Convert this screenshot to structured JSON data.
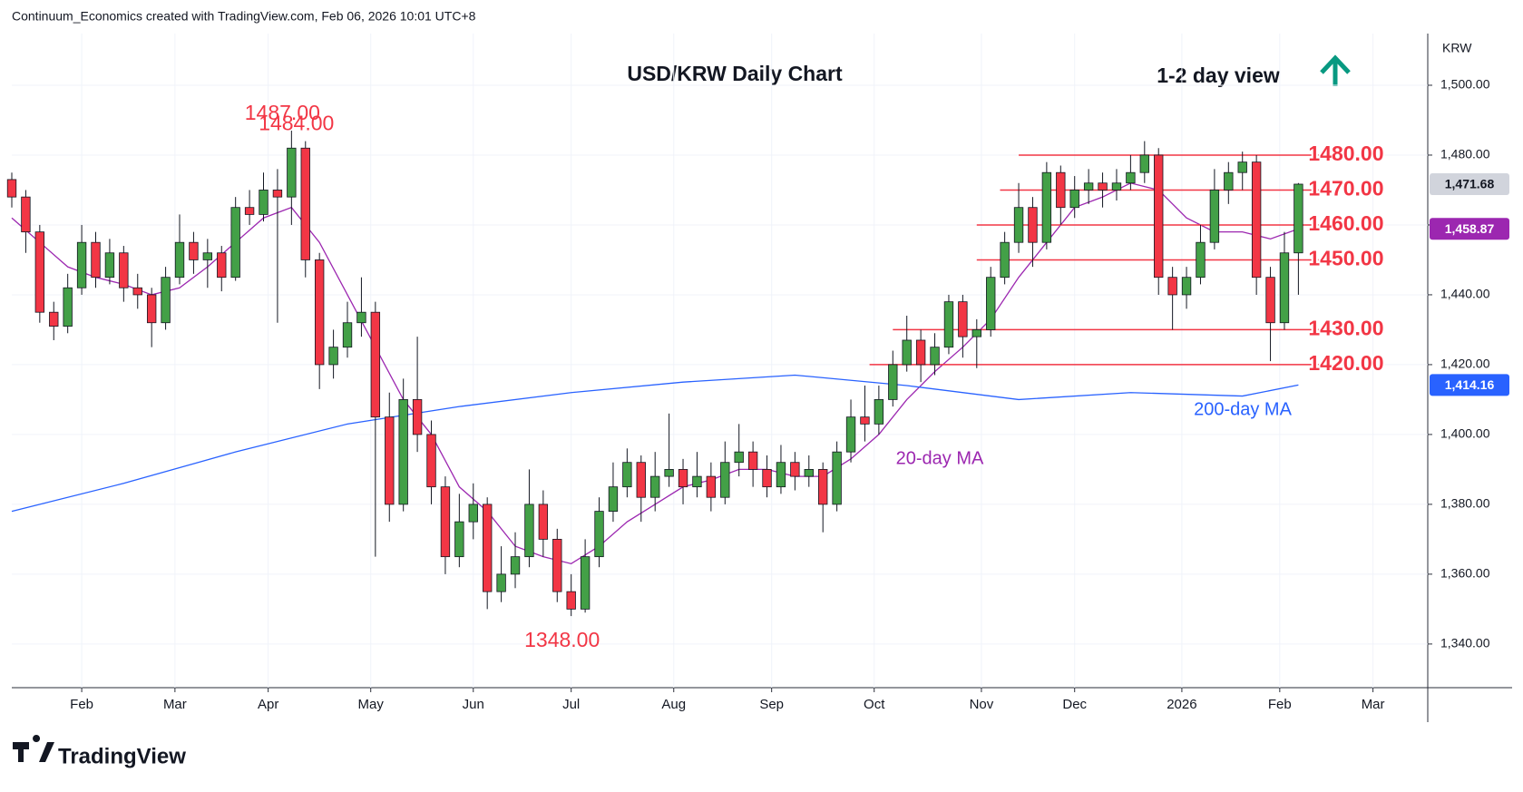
{
  "header": "Continuum_Economics created with TradingView.com, Feb 06, 2026 10:01 UTC+8",
  "footer": "TradingView",
  "chart_data": {
    "type": "candlestick",
    "title": "USD/KRW Daily Chart",
    "subtitle": "1-2 day view",
    "currency": "KRW",
    "up_color": "#43a047",
    "down_color": "#f23645",
    "x": [
      0,
      3,
      6,
      9,
      12,
      15,
      18,
      21,
      24,
      27,
      30,
      33,
      36,
      39,
      42,
      45,
      48,
      51,
      54,
      57,
      60,
      63,
      66,
      69,
      72,
      75,
      78,
      81,
      84,
      87,
      90,
      93,
      96,
      99,
      102,
      105,
      108,
      111,
      114,
      117,
      120,
      123,
      126,
      129,
      132,
      135,
      138,
      141,
      144,
      147,
      150,
      153,
      156,
      159,
      162,
      165,
      168,
      171,
      174,
      177,
      180,
      183,
      186,
      189,
      192,
      195,
      198,
      201,
      204,
      207,
      210,
      213,
      216,
      219,
      222,
      225,
      228,
      231,
      234,
      237,
      240,
      243,
      246,
      249,
      252,
      255,
      258,
      261,
      264,
      267,
      270,
      273,
      276
    ],
    "ohlc": [
      [
        1473,
        1475,
        1465,
        1468
      ],
      [
        1468,
        1470,
        1452,
        1458
      ],
      [
        1458,
        1460,
        1432,
        1435
      ],
      [
        1435,
        1438,
        1427,
        1431
      ],
      [
        1431,
        1446,
        1429,
        1442
      ],
      [
        1442,
        1460,
        1440,
        1455
      ],
      [
        1455,
        1458,
        1442,
        1445
      ],
      [
        1445,
        1456,
        1443,
        1452
      ],
      [
        1452,
        1454,
        1438,
        1442
      ],
      [
        1442,
        1446,
        1436,
        1440
      ],
      [
        1440,
        1442,
        1425,
        1432
      ],
      [
        1432,
        1448,
        1430,
        1445
      ],
      [
        1445,
        1463,
        1443,
        1455
      ],
      [
        1455,
        1458,
        1446,
        1450
      ],
      [
        1450,
        1456,
        1442,
        1452
      ],
      [
        1452,
        1454,
        1441,
        1445
      ],
      [
        1445,
        1468,
        1444,
        1465
      ],
      [
        1465,
        1470,
        1460,
        1463
      ],
      [
        1463,
        1475,
        1461,
        1470
      ],
      [
        1470,
        1476,
        1432,
        1468
      ],
      [
        1468,
        1487,
        1460,
        1482
      ],
      [
        1482,
        1484,
        1445,
        1450
      ],
      [
        1450,
        1452,
        1413,
        1420
      ],
      [
        1420,
        1430,
        1416,
        1425
      ],
      [
        1425,
        1438,
        1422,
        1432
      ],
      [
        1432,
        1445,
        1428,
        1435
      ],
      [
        1435,
        1438,
        1365,
        1405
      ],
      [
        1405,
        1412,
        1375,
        1380
      ],
      [
        1380,
        1416,
        1378,
        1410
      ],
      [
        1410,
        1428,
        1395,
        1400
      ],
      [
        1400,
        1404,
        1380,
        1385
      ],
      [
        1385,
        1388,
        1360,
        1365
      ],
      [
        1365,
        1383,
        1362,
        1375
      ],
      [
        1375,
        1386,
        1370,
        1380
      ],
      [
        1380,
        1382,
        1350,
        1355
      ],
      [
        1355,
        1368,
        1352,
        1360
      ],
      [
        1360,
        1372,
        1356,
        1365
      ],
      [
        1365,
        1390,
        1362,
        1380
      ],
      [
        1380,
        1384,
        1365,
        1370
      ],
      [
        1370,
        1373,
        1352,
        1355
      ],
      [
        1355,
        1360,
        1348,
        1350
      ],
      [
        1350,
        1370,
        1349,
        1365
      ],
      [
        1365,
        1382,
        1362,
        1378
      ],
      [
        1378,
        1392,
        1375,
        1385
      ],
      [
        1385,
        1396,
        1382,
        1392
      ],
      [
        1392,
        1394,
        1375,
        1382
      ],
      [
        1382,
        1395,
        1378,
        1388
      ],
      [
        1388,
        1406,
        1385,
        1390
      ],
      [
        1390,
        1393,
        1380,
        1385
      ],
      [
        1385,
        1395,
        1382,
        1388
      ],
      [
        1388,
        1392,
        1378,
        1382
      ],
      [
        1382,
        1398,
        1380,
        1392
      ],
      [
        1392,
        1403,
        1388,
        1395
      ],
      [
        1395,
        1398,
        1385,
        1390
      ],
      [
        1390,
        1394,
        1382,
        1385
      ],
      [
        1385,
        1397,
        1383,
        1392
      ],
      [
        1392,
        1395,
        1384,
        1388
      ],
      [
        1388,
        1394,
        1385,
        1390
      ],
      [
        1390,
        1392,
        1372,
        1380
      ],
      [
        1380,
        1398,
        1378,
        1395
      ],
      [
        1395,
        1410,
        1392,
        1405
      ],
      [
        1405,
        1414,
        1398,
        1403
      ],
      [
        1403,
        1414,
        1400,
        1410
      ],
      [
        1410,
        1424,
        1408,
        1420
      ],
      [
        1420,
        1434,
        1418,
        1427
      ],
      [
        1427,
        1430,
        1415,
        1420
      ],
      [
        1420,
        1429,
        1417,
        1425
      ],
      [
        1425,
        1440,
        1423,
        1438
      ],
      [
        1438,
        1440,
        1422,
        1428
      ],
      [
        1428,
        1433,
        1419,
        1430
      ],
      [
        1430,
        1448,
        1428,
        1445
      ],
      [
        1445,
        1458,
        1443,
        1455
      ],
      [
        1455,
        1472,
        1452,
        1465
      ],
      [
        1465,
        1468,
        1448,
        1455
      ],
      [
        1455,
        1478,
        1453,
        1475
      ],
      [
        1475,
        1477,
        1460,
        1465
      ],
      [
        1465,
        1474,
        1462,
        1470
      ],
      [
        1470,
        1476,
        1466,
        1472
      ],
      [
        1472,
        1475,
        1465,
        1470
      ],
      [
        1470,
        1476,
        1467,
        1472
      ],
      [
        1472,
        1480,
        1470,
        1475
      ],
      [
        1475,
        1484,
        1472,
        1480
      ],
      [
        1480,
        1482,
        1440,
        1445
      ],
      [
        1445,
        1448,
        1430,
        1440
      ],
      [
        1440,
        1448,
        1436,
        1445
      ],
      [
        1445,
        1460,
        1443,
        1455
      ],
      [
        1455,
        1476,
        1453,
        1470
      ],
      [
        1470,
        1478,
        1466,
        1475
      ],
      [
        1475,
        1481,
        1470,
        1478
      ],
      [
        1478,
        1480,
        1440,
        1445
      ],
      [
        1445,
        1448,
        1421,
        1432
      ],
      [
        1432,
        1458,
        1430,
        1452
      ],
      [
        1452,
        1472,
        1440,
        1471.68
      ]
    ],
    "lines": [
      {
        "name": "20-day MA",
        "color": "#9c27b0",
        "x": [
          0,
          6,
          12,
          18,
          24,
          30,
          36,
          42,
          48,
          54,
          60,
          66,
          72,
          78,
          84,
          90,
          96,
          102,
          108,
          114,
          120,
          126,
          132,
          138,
          144,
          150,
          156,
          162,
          168,
          174,
          180,
          186,
          192,
          198,
          204,
          210,
          216,
          222,
          228,
          234,
          240,
          246,
          252,
          258,
          264,
          270,
          276
        ],
        "values": [
          1462,
          1455,
          1448,
          1445,
          1443,
          1440,
          1442,
          1448,
          1455,
          1462,
          1465,
          1455,
          1440,
          1425,
          1410,
          1400,
          1385,
          1378,
          1368,
          1365,
          1363,
          1368,
          1375,
          1380,
          1385,
          1387,
          1390,
          1390,
          1388,
          1388,
          1393,
          1400,
          1410,
          1418,
          1425,
          1433,
          1445,
          1455,
          1465,
          1468,
          1472,
          1470,
          1462,
          1458,
          1458,
          1456,
          1458.87
        ]
      },
      {
        "name": "200-day MA",
        "color": "#2962ff",
        "x": [
          0,
          24,
          48,
          72,
          96,
          120,
          144,
          168,
          192,
          216,
          240,
          264,
          276
        ],
        "values": [
          1378,
          1386,
          1395,
          1403,
          1408,
          1412,
          1415,
          1417,
          1414,
          1410,
          1412,
          1411,
          1414.16
        ]
      }
    ],
    "levels": [
      {
        "value": 1480,
        "label": "1480.00",
        "from": 216,
        "to": 283
      },
      {
        "value": 1470,
        "label": "1470.00",
        "from": 212,
        "to": 283
      },
      {
        "value": 1460,
        "label": "1460.00",
        "from": 207,
        "to": 283
      },
      {
        "value": 1450,
        "label": "1450.00",
        "from": 207,
        "to": 283
      },
      {
        "value": 1430,
        "label": "1430.00",
        "from": 189,
        "to": 283
      },
      {
        "value": 1420,
        "label": "1420.00",
        "from": 184,
        "to": 283
      }
    ],
    "annotations": [
      {
        "value": 1487,
        "label": "1487.00"
      },
      {
        "value": 1484,
        "label": "1484.00"
      },
      {
        "value": 1348,
        "label": "1348.00"
      }
    ],
    "price_tags": [
      {
        "value": 1471.68,
        "label": "1,471.68",
        "color": "#d1d4dc",
        "text_color": "#131722"
      },
      {
        "value": 1458.87,
        "label": "1,458.87",
        "color": "#9c27b0",
        "text_color": "#ffffff"
      },
      {
        "value": 1414.16,
        "label": "1,414.16",
        "color": "#2962ff",
        "text_color": "#ffffff"
      }
    ],
    "xlim": [
      0,
      303.75
    ],
    "ylim": [
      1327.5,
      1514.8
    ],
    "xticks": [
      {
        "value": 15,
        "label": "Feb"
      },
      {
        "value": 35,
        "label": "Mar"
      },
      {
        "value": 55,
        "label": "Apr"
      },
      {
        "value": 77,
        "label": "May"
      },
      {
        "value": 99,
        "label": "Jun"
      },
      {
        "value": 120,
        "label": "Jul"
      },
      {
        "value": 142,
        "label": "Aug"
      },
      {
        "value": 163,
        "label": "Sep"
      },
      {
        "value": 185,
        "label": "Oct"
      },
      {
        "value": 208,
        "label": "Nov"
      },
      {
        "value": 228,
        "label": "Dec"
      },
      {
        "value": 251,
        "label": "2026"
      },
      {
        "value": 272,
        "label": "Feb"
      },
      {
        "value": 292,
        "label": "Mar"
      }
    ],
    "yticks": [
      {
        "value": 1340,
        "label": "1,340.00"
      },
      {
        "value": 1360,
        "label": "1,360.00"
      },
      {
        "value": 1380,
        "label": "1,380.00"
      },
      {
        "value": 1400,
        "label": "1,400.00"
      },
      {
        "value": 1420,
        "label": "1,420.00"
      },
      {
        "value": 1440,
        "label": "1,440.00"
      },
      {
        "value": 1460,
        "label": "1,460.00"
      },
      {
        "value": 1480,
        "label": "1,480.00"
      },
      {
        "value": 1500,
        "label": "1,500.00"
      }
    ],
    "grid": true
  }
}
